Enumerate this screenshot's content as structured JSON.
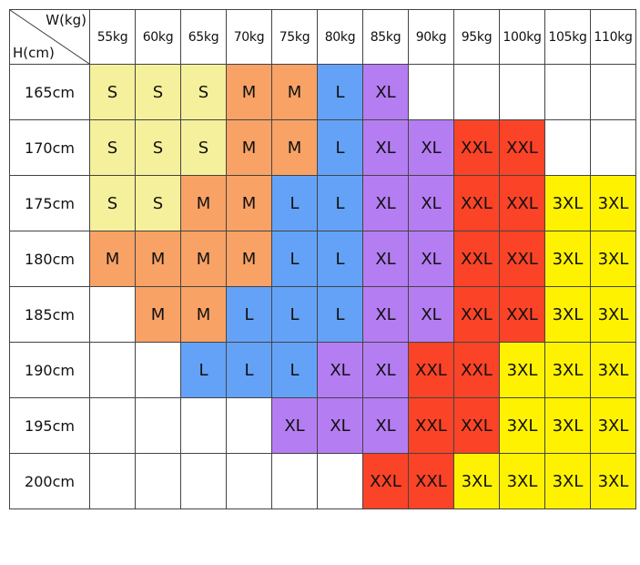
{
  "corner": {
    "weight_label": "W(kg)",
    "height_label": "H(cm)"
  },
  "weights": [
    "55kg",
    "60kg",
    "65kg",
    "70kg",
    "75kg",
    "80kg",
    "85kg",
    "90kg",
    "95kg",
    "100kg",
    "105kg",
    "110kg"
  ],
  "rows": [
    {
      "height": "165cm",
      "sizes": [
        "S",
        "S",
        "S",
        "M",
        "M",
        "L",
        "XL",
        "",
        "",
        "",
        "",
        ""
      ]
    },
    {
      "height": "170cm",
      "sizes": [
        "S",
        "S",
        "S",
        "M",
        "M",
        "L",
        "XL",
        "XL",
        "XXL",
        "XXL",
        "",
        ""
      ]
    },
    {
      "height": "175cm",
      "sizes": [
        "S",
        "S",
        "M",
        "M",
        "L",
        "L",
        "XL",
        "XL",
        "XXL",
        "XXL",
        "3XL",
        "3XL"
      ]
    },
    {
      "height": "180cm",
      "sizes": [
        "M",
        "M",
        "M",
        "M",
        "L",
        "L",
        "XL",
        "XL",
        "XXL",
        "XXL",
        "3XL",
        "3XL"
      ]
    },
    {
      "height": "185cm",
      "sizes": [
        "",
        "M",
        "M",
        "L",
        "L",
        "L",
        "XL",
        "XL",
        "XXL",
        "XXL",
        "3XL",
        "3XL"
      ]
    },
    {
      "height": "190cm",
      "sizes": [
        "",
        "",
        "L",
        "L",
        "L",
        "XL",
        "XL",
        "XXL",
        "XXL",
        "3XL",
        "3XL",
        "3XL"
      ]
    },
    {
      "height": "195cm",
      "sizes": [
        "",
        "",
        "",
        "",
        "XL",
        "XL",
        "XL",
        "XXL",
        "XXL",
        "3XL",
        "3XL",
        "3XL"
      ]
    },
    {
      "height": "200cm",
      "sizes": [
        "",
        "",
        "",
        "",
        "",
        "",
        "XXL",
        "XXL",
        "3XL",
        "3XL",
        "3XL",
        "3XL"
      ]
    }
  ],
  "size_colors": {
    "S": "#f5f09b",
    "M": "#f8a266",
    "L": "#64a2f7",
    "XL": "#b57df2",
    "XXL": "#fa4327",
    "3XL": "#fef200"
  }
}
